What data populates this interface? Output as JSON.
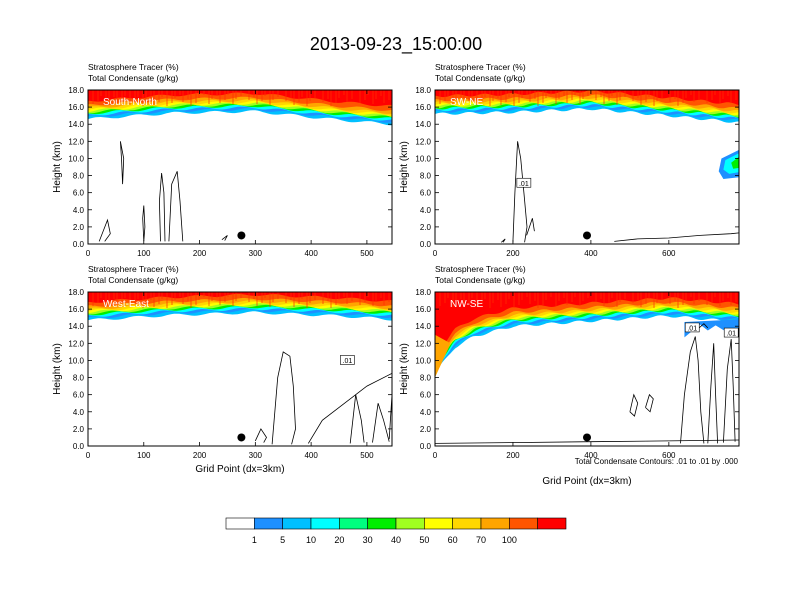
{
  "figure_title": "2013-09-23_15:00:00",
  "footnote": "Total Condensate Contours: .01 to .01 by .000",
  "colors": {
    "bins": [
      "#ffffff",
      "#1e90ff",
      "#00c0ff",
      "#00ffff",
      "#00ff7f",
      "#00ee00",
      "#a0ff20",
      "#ffff00",
      "#ffd700",
      "#ffa500",
      "#ff5500",
      "#ff0000"
    ],
    "contour": "#000000",
    "marker": "#000000"
  },
  "chart_data": [
    {
      "type": "contour",
      "panel_label": "South-North",
      "subtitle1": "Stratosphere Tracer   (%)",
      "subtitle2": "Total Condensate   (g/kg)",
      "ylabel": "Height (km)",
      "xlabel": "",
      "xlim": [
        0,
        545
      ],
      "ylim": [
        0,
        18
      ],
      "xticks": [
        0,
        100,
        200,
        300,
        400,
        500
      ],
      "yticks": [
        0,
        2,
        4,
        6,
        8,
        10,
        12,
        14,
        16,
        18
      ],
      "ytick_labels": [
        "0.0",
        "2.0",
        "4.0",
        "6.0",
        "8.0",
        "10.0",
        "12.0",
        "14.0",
        "16.0",
        "18.0"
      ],
      "marker_point": [
        275,
        1.0
      ],
      "tropopause_km": [
        [
          0,
          14.6
        ],
        [
          150,
          15.3
        ],
        [
          300,
          15.5
        ],
        [
          450,
          14.5
        ],
        [
          545,
          14.0
        ]
      ],
      "contour_labels": []
    },
    {
      "type": "contour",
      "panel_label": "SW-NE",
      "subtitle1": "Stratosphere Tracer   (%)",
      "subtitle2": "Total Condensate   (g/kg)",
      "ylabel": "Height (km)",
      "xlabel": "",
      "xlim": [
        0,
        780
      ],
      "ylim": [
        0,
        18
      ],
      "xticks": [
        0,
        200,
        400,
        600
      ],
      "yticks": [
        0,
        2,
        4,
        6,
        8,
        10,
        12,
        14,
        16,
        18
      ],
      "ytick_labels": [
        "0.0",
        "2.0",
        "4.0",
        "6.0",
        "8.0",
        "10.0",
        "12.0",
        "14.0",
        "16.0",
        "18.0"
      ],
      "marker_point": [
        390,
        1.0
      ],
      "tropopause_km": [
        [
          0,
          15.2
        ],
        [
          200,
          15.4
        ],
        [
          400,
          15.8
        ],
        [
          600,
          15.0
        ],
        [
          780,
          14.2
        ]
      ],
      "contour_labels": [
        ".01"
      ]
    },
    {
      "type": "contour",
      "panel_label": "West-East",
      "subtitle1": "Stratosphere Tracer   (%)",
      "subtitle2": "Total Condensate   (g/kg)",
      "ylabel": "Height (km)",
      "xlabel": "Grid Point (dx=3km)",
      "xlim": [
        0,
        545
      ],
      "ylim": [
        0,
        18
      ],
      "xticks": [
        0,
        100,
        200,
        300,
        400,
        500
      ],
      "yticks": [
        0,
        2,
        4,
        6,
        8,
        10,
        12,
        14,
        16,
        18
      ],
      "ytick_labels": [
        "0.0",
        "2.0",
        "4.0",
        "6.0",
        "8.0",
        "10.0",
        "12.0",
        "14.0",
        "16.0",
        "18.0"
      ],
      "marker_point": [
        275,
        1.0
      ],
      "tropopause_km": [
        [
          0,
          14.7
        ],
        [
          150,
          15.3
        ],
        [
          300,
          15.6
        ],
        [
          450,
          15.2
        ],
        [
          545,
          14.8
        ]
      ],
      "contour_labels": [
        ".01"
      ]
    },
    {
      "type": "contour",
      "panel_label": "NW-SE",
      "subtitle1": "Stratosphere Tracer   (%)",
      "subtitle2": "Total Condensate   (g/kg)",
      "ylabel": "Height (km)",
      "xlabel": "Grid Point (dx=3km)",
      "xlim": [
        0,
        780
      ],
      "ylim": [
        0,
        18
      ],
      "xticks": [
        0,
        200,
        400,
        600
      ],
      "yticks": [
        0,
        2,
        4,
        6,
        8,
        10,
        12,
        14,
        16,
        18
      ],
      "ytick_labels": [
        "0.0",
        "2.0",
        "4.0",
        "6.0",
        "8.0",
        "10.0",
        "12.0",
        "14.0",
        "16.0",
        "18.0"
      ],
      "marker_point": [
        390,
        1.0
      ],
      "tropopause_km": [
        [
          0,
          8.5
        ],
        [
          50,
          11.5
        ],
        [
          100,
          12.8
        ],
        [
          200,
          14.0
        ],
        [
          400,
          14.6
        ],
        [
          600,
          15.2
        ],
        [
          780,
          14.5
        ]
      ],
      "contour_labels": [
        ".01",
        ".01"
      ]
    }
  ],
  "colorbar": {
    "labels": [
      "1",
      "5",
      "10",
      "20",
      "30",
      "40",
      "50",
      "60",
      "70",
      "100"
    ]
  }
}
